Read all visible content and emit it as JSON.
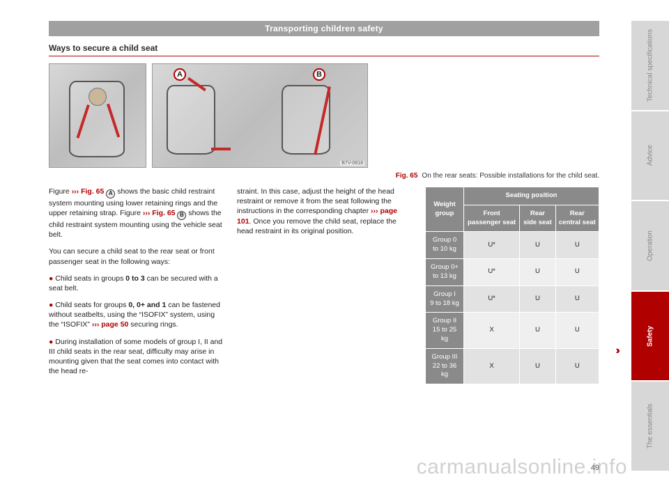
{
  "header": "Transporting children safety",
  "section_title": "Ways to secure a child seat",
  "figure": {
    "badges": {
      "a": "A",
      "b": "B"
    },
    "code": "B7V-0818",
    "num": "Fig. 65",
    "caption": "On the rear seats: Possible installations for the child seat."
  },
  "col1": {
    "p1a": "Figure ",
    "p1_ref": "››› Fig. 65 ",
    "p1_chipA": "A",
    "p1b": " shows the basic child restraint system mounting using lower retaining rings and the upper retaining strap. Figure ",
    "p1_ref2": "››› Fig. 65 ",
    "p1_chipB": "B",
    "p1c": " shows the child restraint system mounting using the vehicle seat belt.",
    "p2": "You can secure a child seat to the rear seat or front passenger seat in the following ways:",
    "b1a": "Child seats in groups ",
    "b1b": "0 to 3",
    "b1c": " can be secured with a seat belt.",
    "b2a": "Child seats for groups ",
    "b2b": "0, 0+ and 1",
    "b2c": " can be fastened without seatbelts, using the “ISOFIX” system, using the “ISOFIX” ",
    "b2ref": "››› page 50",
    "b2d": " securing rings.",
    "b3": "During installation of some models of group I, II and III child seats in the rear seat, difficulty may arise in mounting given that the seat comes into contact with the head re-"
  },
  "col2": {
    "p1a": "straint. In this case, adjust the height of the head restraint or remove it from the seat following the instructions in the corresponding chapter ",
    "p1ref": "››› page 101",
    "p1b": ". Once you remove the child seat, replace the head restraint in its original position."
  },
  "table": {
    "headers": {
      "wg": "Weight group",
      "sp": "Seating position",
      "c1": "Front passenger seat",
      "c2": "Rear side seat",
      "c3": "Rear central seat"
    },
    "rows": [
      {
        "wg1": "Group 0",
        "wg2": "to 10 kg",
        "v": [
          "U*",
          "U",
          "U"
        ]
      },
      {
        "wg1": "Group 0+",
        "wg2": "to 13 kg",
        "v": [
          "U*",
          "U",
          "U"
        ]
      },
      {
        "wg1": "Group I",
        "wg2": "9 to 18 kg",
        "v": [
          "U*",
          "U",
          "U"
        ]
      },
      {
        "wg1": "Group II",
        "wg2": "15 to 25 kg",
        "v": [
          "X",
          "U",
          "U"
        ]
      },
      {
        "wg1": "Group III",
        "wg2": "22 to 36 kg",
        "v": [
          "X",
          "U",
          "U"
        ]
      }
    ]
  },
  "cont": "››",
  "page_number": "49",
  "tabs": [
    "Technical specifications",
    "Advice",
    "Operation",
    "Safety",
    "The essentials"
  ],
  "watermark": "carmanualsonline.info"
}
